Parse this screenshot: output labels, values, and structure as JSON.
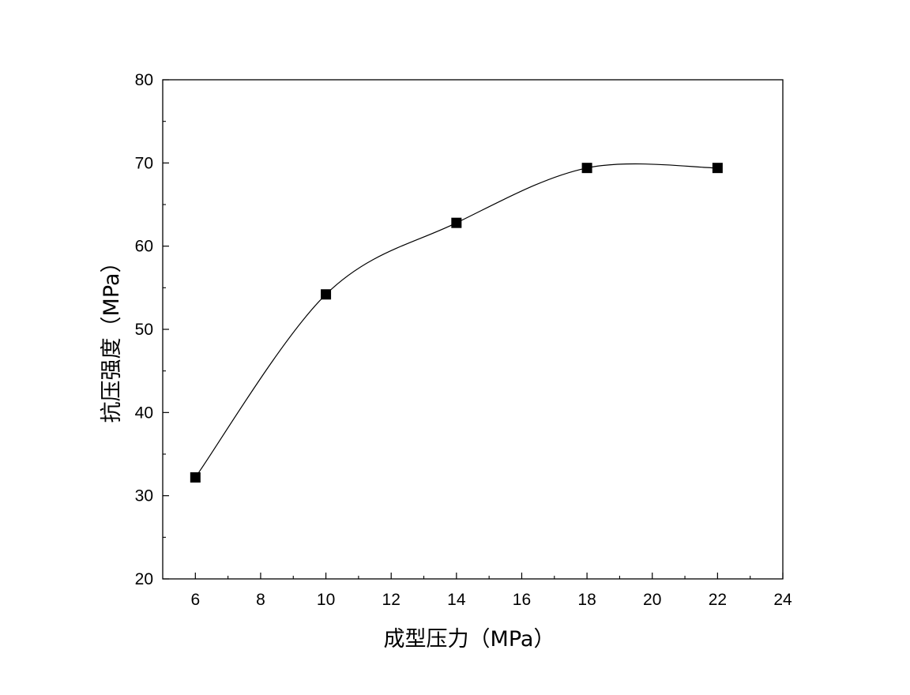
{
  "chart_data": {
    "type": "scatter",
    "title": "",
    "xlabel": "成型压力（MPa）",
    "ylabel": "抗压强度（MPa）",
    "xlim": [
      5,
      24
    ],
    "ylim": [
      20,
      80
    ],
    "x_ticks": [
      6,
      8,
      10,
      12,
      14,
      16,
      18,
      20,
      22,
      24
    ],
    "y_ticks": [
      20,
      30,
      40,
      50,
      60,
      70,
      80
    ],
    "grid": false,
    "series": [
      {
        "x": [
          6,
          10,
          14,
          18,
          22
        ],
        "y": [
          32.2,
          54.2,
          62.8,
          69.4,
          69.4
        ],
        "marker": "square",
        "line": "spline",
        "color": "#000000"
      }
    ]
  }
}
